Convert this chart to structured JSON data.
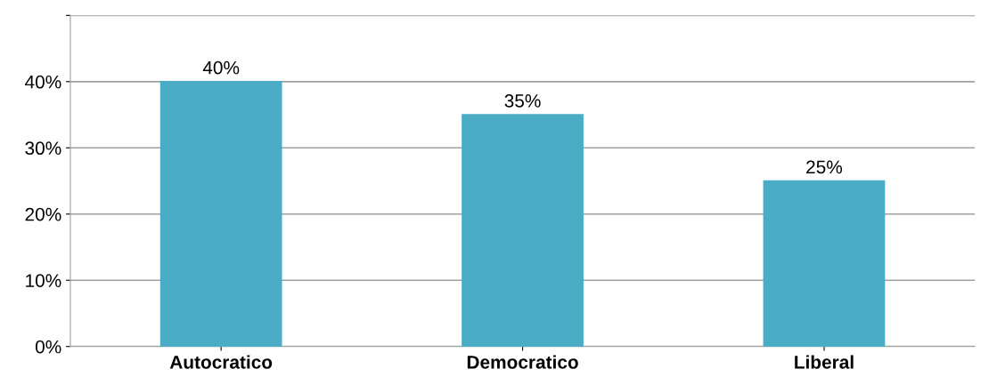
{
  "chart_data": {
    "type": "bar",
    "categories": [
      "Autocratico",
      "Democratico",
      "Liberal"
    ],
    "values": [
      40,
      35,
      25
    ],
    "value_labels": [
      "40%",
      "35%",
      "25%"
    ],
    "color": "#4bacc6",
    "ylim": [
      0,
      50
    ],
    "yticks": [
      {
        "value": 0,
        "label": "0%"
      },
      {
        "value": 10,
        "label": "10%"
      },
      {
        "value": 20,
        "label": "20%"
      },
      {
        "value": 30,
        "label": "30%"
      },
      {
        "value": 40,
        "label": "40%"
      },
      {
        "value": 50,
        "label": null
      }
    ],
    "grid": "y",
    "legend": false
  }
}
